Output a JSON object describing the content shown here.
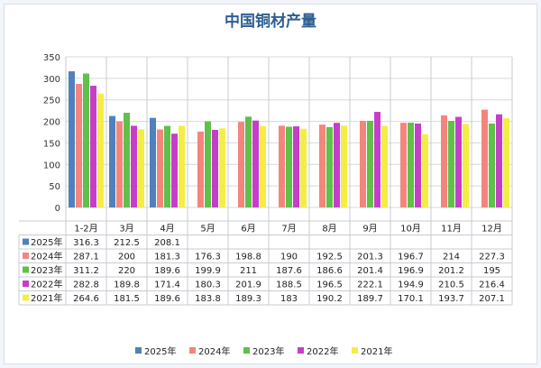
{
  "chart_data": {
    "type": "bar",
    "title": "中国铜材产量",
    "categories": [
      "1-2月",
      "3月",
      "4月",
      "5月",
      "6月",
      "7月",
      "8月",
      "9月",
      "10月",
      "11月",
      "12月"
    ],
    "yticks": [
      "0",
      "50",
      "100",
      "150",
      "200",
      "250",
      "300",
      "350"
    ],
    "ylim": [
      0,
      350
    ],
    "grid": true,
    "legend_position": "bottom",
    "data_table": true,
    "series": [
      {
        "name": "2025年",
        "color": "#4f81bd",
        "values": [
          316.3,
          212.5,
          208.1,
          null,
          null,
          null,
          null,
          null,
          null,
          null,
          null
        ],
        "labels": [
          "316.3",
          "212.5",
          "208.1",
          "",
          "",
          "",
          "",
          "",
          "",
          "",
          ""
        ]
      },
      {
        "name": "2024年",
        "color": "#f4857d",
        "values": [
          287.1,
          200,
          181.3,
          176.3,
          198.8,
          190,
          192.5,
          201.3,
          196.7,
          214,
          227.3
        ],
        "labels": [
          "287.1",
          "200",
          "181.3",
          "176.3",
          "198.8",
          "190",
          "192.5",
          "201.3",
          "196.7",
          "214",
          "227.3"
        ]
      },
      {
        "name": "2023年",
        "color": "#5fc04a",
        "values": [
          311.2,
          220,
          189.6,
          199.9,
          211,
          187.6,
          186.6,
          201.4,
          196.9,
          201.2,
          195
        ],
        "labels": [
          "311.2",
          "220",
          "189.6",
          "199.9",
          "211",
          "187.6",
          "186.6",
          "201.4",
          "196.9",
          "201.2",
          "195"
        ]
      },
      {
        "name": "2022年",
        "color": "#c63ec8",
        "values": [
          282.8,
          189.8,
          171.4,
          180.3,
          201.9,
          188.5,
          196.5,
          222.1,
          194.9,
          210.5,
          216.4
        ],
        "labels": [
          "282.8",
          "189.8",
          "171.4",
          "180.3",
          "201.9",
          "188.5",
          "196.5",
          "222.1",
          "194.9",
          "210.5",
          "216.4"
        ]
      },
      {
        "name": "2021年",
        "color": "#f4ee44",
        "values": [
          264.6,
          181.5,
          189.6,
          183.8,
          189.3,
          183,
          190.2,
          189.7,
          170.1,
          193.7,
          207.1
        ],
        "labels": [
          "264.6",
          "181.5",
          "189.6",
          "183.8",
          "189.3",
          "183",
          "190.2",
          "189.7",
          "170.1",
          "193.7",
          "207.1"
        ]
      }
    ]
  }
}
